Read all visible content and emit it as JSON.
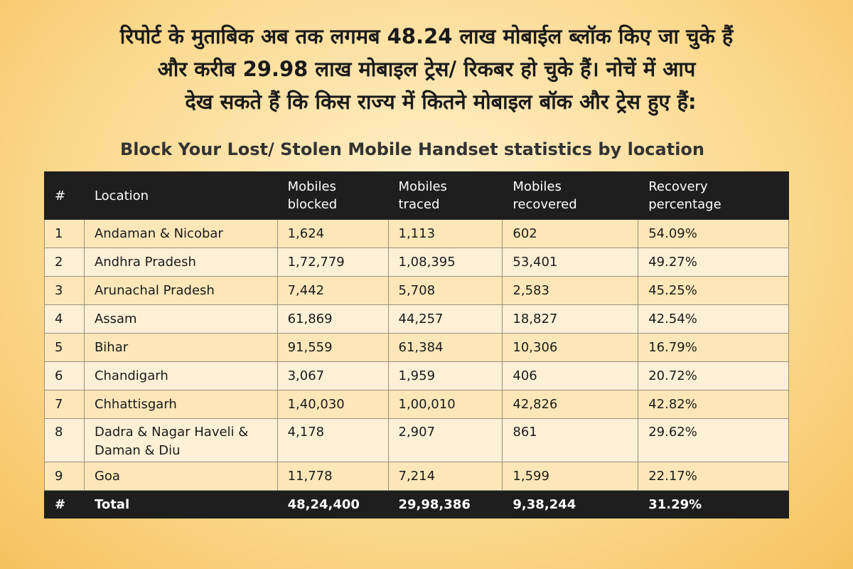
{
  "header": {
    "lines": [
      "रिपोर्ट के मुताबिक अब तक लगमब 48.24 लाख मोबाईल ब्लॉक किए जा चुके हैं",
      "और करीब 29.98 लाख मोबाइल ट्रेस/ रिकबर हो चुके हैं। नोचें में आप",
      "देख सकते हैं कि किस राज्य में कितने मोबाइल बॉक और ट्रेस हुए हैं:"
    ]
  },
  "table": {
    "title": "Block Your Lost/ Stolen Mobile Handset statistics by location",
    "columns": [
      "#",
      "Location",
      "Mobiles blocked",
      "Mobiles traced",
      "Mobiles recovered",
      "Recovery percentage"
    ],
    "rows": [
      [
        "1",
        "Andaman & Nicobar",
        "1,624",
        "1,113",
        "602",
        "54.09%"
      ],
      [
        "2",
        "Andhra Pradesh",
        "1,72,779",
        "1,08,395",
        "53,401",
        "49.27%"
      ],
      [
        "3",
        "Arunachal Pradesh",
        "7,442",
        "5,708",
        "2,583",
        "45.25%"
      ],
      [
        "4",
        "Assam",
        "61,869",
        "44,257",
        "18,827",
        "42.54%"
      ],
      [
        "5",
        "Bihar",
        "91,559",
        "61,384",
        "10,306",
        "16.79%"
      ],
      [
        "6",
        "Chandigarh",
        "3,067",
        "1,959",
        "406",
        "20.72%"
      ],
      [
        "7",
        "Chhattisgarh",
        "1,40,030",
        "1,00,010",
        "42,826",
        "42.82%"
      ],
      [
        "8",
        "Dadra & Nagar Haveli & Daman & Diu",
        "4,178",
        "2,907",
        "861",
        "29.62%"
      ],
      [
        "9",
        "Goa",
        "11,778",
        "7,214",
        "1,599",
        "22.17%"
      ]
    ],
    "total": [
      "#",
      "Total",
      "48,24,400",
      "29,98,386",
      "9,38,244",
      "31.29%"
    ]
  }
}
